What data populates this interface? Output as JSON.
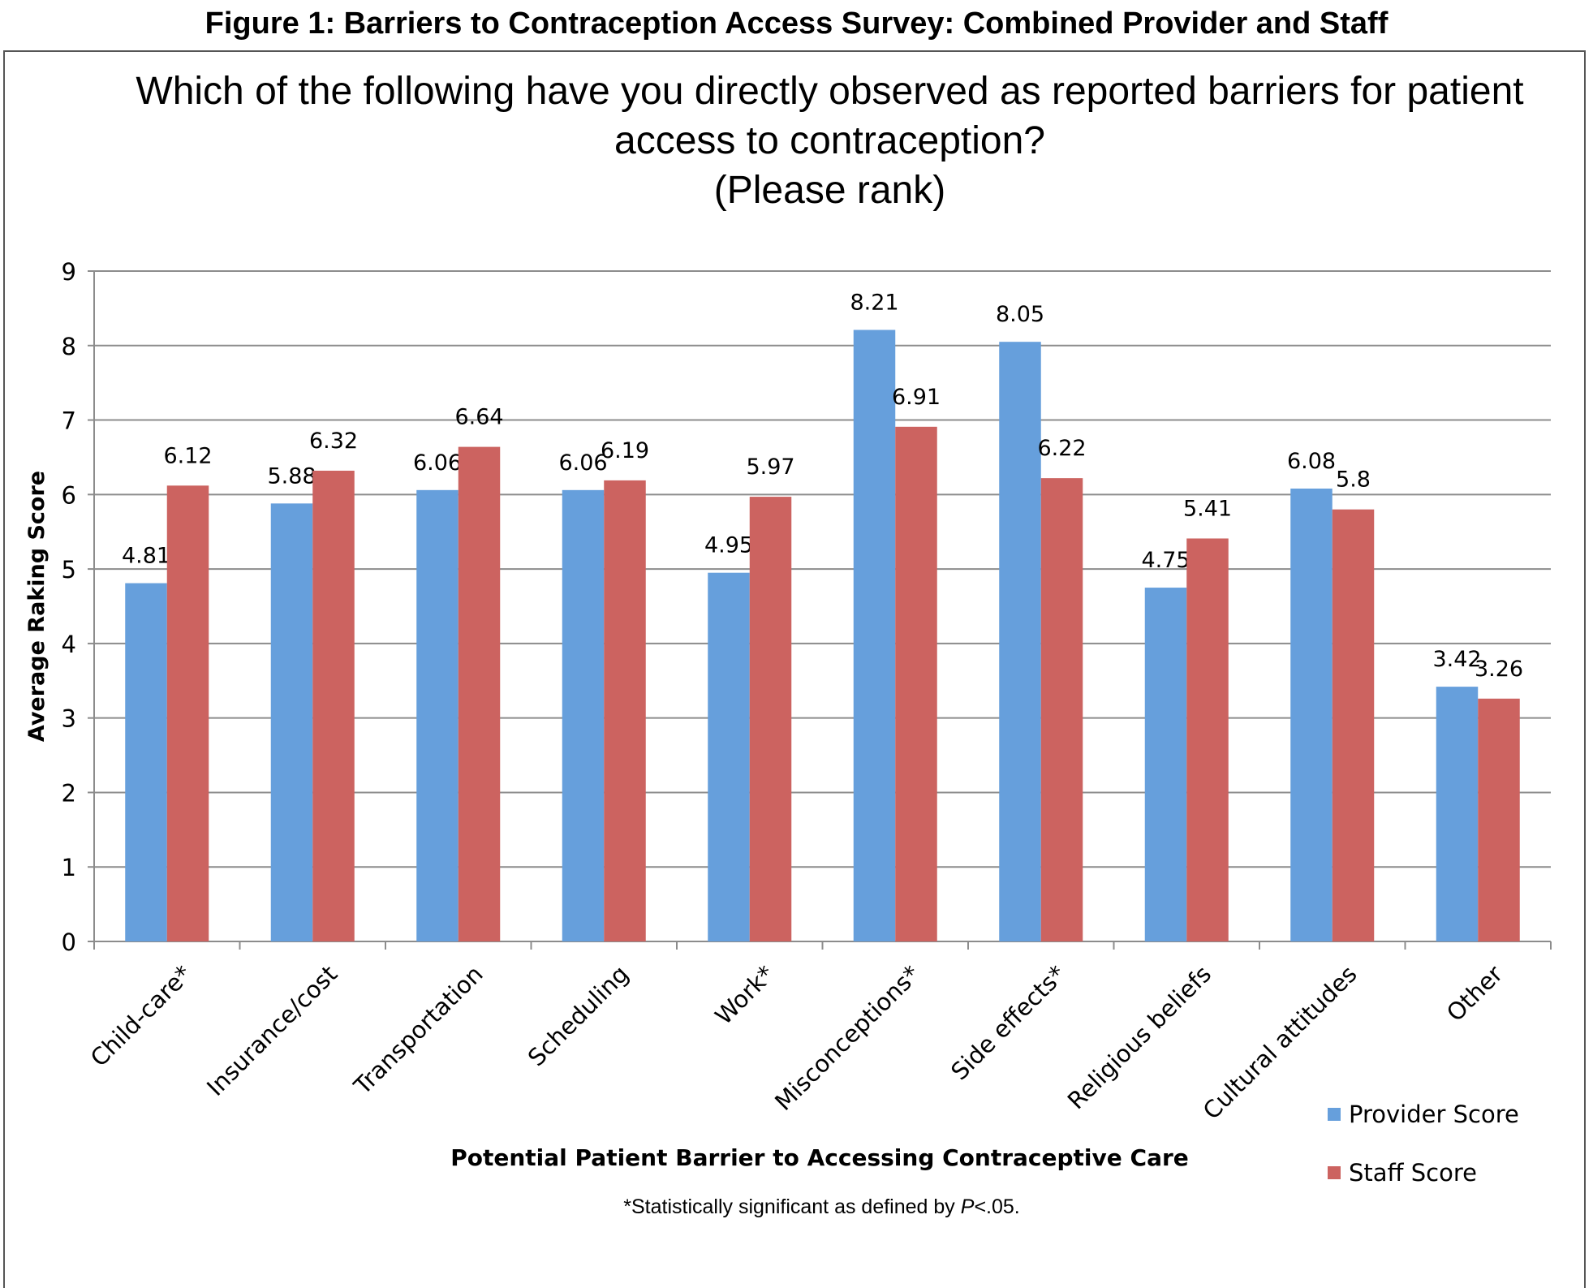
{
  "figure_caption": "Figure 1: Barriers to Contraception Access Survey: Combined Provider and Staff",
  "footnote": "*Statistically significant as defined by P<.05.",
  "chart_data": {
    "type": "bar",
    "title_lines": [
      "Which of the following have you directly observed as reported barriers for patient",
      "access to contraception?",
      "(Please rank)"
    ],
    "xlabel": "Potential Patient Barrier to Accessing Contraceptive Care",
    "ylabel": "Average Raking Score",
    "ylim": [
      0,
      9
    ],
    "yticks": [
      0,
      1,
      2,
      3,
      4,
      5,
      6,
      7,
      8,
      9
    ],
    "grid": true,
    "legend_position": "bottom-right",
    "categories": [
      "Child-care*",
      "Insurance/cost",
      "Transportation",
      "Scheduling",
      "Work*",
      "Misconceptions*",
      "Side effects*",
      "Religious beliefs",
      "Cultural attitudes",
      "Other"
    ],
    "series": [
      {
        "name": "Provider Score",
        "color": "#669fdc",
        "values": [
          4.81,
          5.88,
          6.06,
          6.06,
          4.95,
          8.21,
          8.05,
          4.75,
          6.08,
          3.42
        ]
      },
      {
        "name": "Staff Score",
        "color": "#cc6360",
        "values": [
          6.12,
          6.32,
          6.64,
          6.19,
          5.97,
          6.91,
          6.22,
          5.41,
          5.8,
          3.26
        ]
      }
    ]
  }
}
